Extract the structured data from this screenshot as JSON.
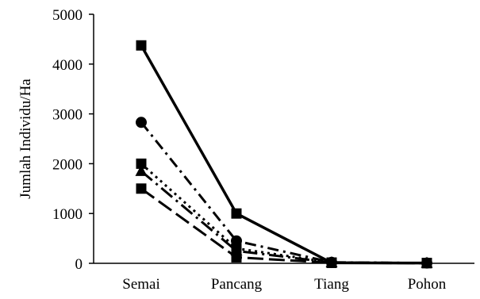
{
  "chart_data": {
    "type": "line",
    "title": "",
    "xlabel": "",
    "ylabel": "Jumlah Individu/Ha",
    "categories": [
      "Semai",
      "Pancang",
      "Tiang",
      "Pohon"
    ],
    "ylim": [
      0,
      5000
    ],
    "yticks": [
      0,
      1000,
      2000,
      3000,
      4000,
      5000
    ],
    "grid": false,
    "legend": "none",
    "series": [
      {
        "values": [
          4375,
          1000,
          10,
          5
        ],
        "marker": "square",
        "dash": "solid",
        "color": "#000000"
      },
      {
        "values": [
          2830,
          450,
          20,
          5
        ],
        "marker": "circle",
        "dash": "dash-dot",
        "color": "#000000"
      },
      {
        "values": [
          2000,
          300,
          15,
          5
        ],
        "marker": "square",
        "dash": "dotted",
        "color": "#000000"
      },
      {
        "values": [
          1850,
          250,
          15,
          5
        ],
        "marker": "triangle",
        "dash": "long-dash-dot",
        "color": "#000000"
      },
      {
        "values": [
          1500,
          120,
          10,
          5
        ],
        "marker": "square",
        "dash": "long-dash",
        "color": "#000000"
      }
    ]
  }
}
